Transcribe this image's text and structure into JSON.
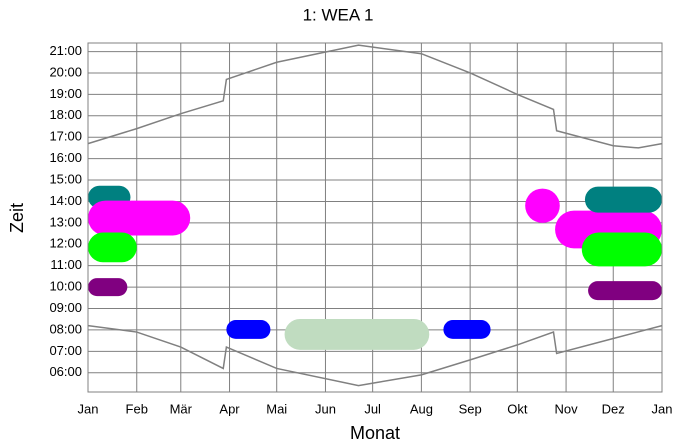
{
  "chart_data": {
    "type": "calendar",
    "title": "1: WEA 1",
    "x_label": "Monat",
    "y_label": "Zeit",
    "xlim": [
      0,
      365
    ],
    "ylim": [
      5.1,
      21.4
    ],
    "xticks": [
      {
        "value": 0,
        "label": "Jan"
      },
      {
        "value": 31,
        "label": "Feb"
      },
      {
        "value": 59,
        "label": "Mär"
      },
      {
        "value": 90,
        "label": "Apr"
      },
      {
        "value": 120,
        "label": "Mai"
      },
      {
        "value": 151,
        "label": "Jun"
      },
      {
        "value": 181,
        "label": "Jul"
      },
      {
        "value": 212,
        "label": "Aug"
      },
      {
        "value": 243,
        "label": "Sep"
      },
      {
        "value": 273,
        "label": "Okt"
      },
      {
        "value": 304,
        "label": "Nov"
      },
      {
        "value": 334,
        "label": "Dez"
      },
      {
        "value": 365,
        "label": "Jan"
      }
    ],
    "yticks": [
      {
        "value": 6,
        "label": "06:00"
      },
      {
        "value": 7,
        "label": "07:00"
      },
      {
        "value": 8,
        "label": "08:00"
      },
      {
        "value": 9,
        "label": "09:00"
      },
      {
        "value": 10,
        "label": "10:00"
      },
      {
        "value": 11,
        "label": "11:00"
      },
      {
        "value": 12,
        "label": "12:00"
      },
      {
        "value": 13,
        "label": "13:00"
      },
      {
        "value": 14,
        "label": "14:00"
      },
      {
        "value": 15,
        "label": "15:00"
      },
      {
        "value": 16,
        "label": "16:00"
      },
      {
        "value": 17,
        "label": "17:00"
      },
      {
        "value": 18,
        "label": "18:00"
      },
      {
        "value": 19,
        "label": "19:00"
      },
      {
        "value": 20,
        "label": "20:00"
      },
      {
        "value": 21,
        "label": "21:00"
      }
    ],
    "grid": true,
    "lines": [
      {
        "color": "#808080",
        "x": [
          0,
          31,
          59,
          86,
          88,
          120,
          172,
          212,
          243,
          273,
          296,
          298,
          334,
          350,
          365
        ],
        "values": [
          16.7,
          17.4,
          18.1,
          18.7,
          19.7,
          20.5,
          21.3,
          20.9,
          20.0,
          19.0,
          18.3,
          17.3,
          16.6,
          16.5,
          16.7
        ]
      },
      {
        "color": "#808080",
        "x": [
          0,
          31,
          59,
          86,
          88,
          120,
          172,
          212,
          243,
          273,
          296,
          298,
          334,
          365
        ],
        "values": [
          8.2,
          7.9,
          7.2,
          6.2,
          7.2,
          6.2,
          5.4,
          5.9,
          6.6,
          7.3,
          7.9,
          6.9,
          7.6,
          8.2
        ]
      }
    ],
    "periods": [
      {
        "color": "#008080",
        "x": [
          0,
          27
        ],
        "y": [
          13.67,
          14.73
        ]
      },
      {
        "color": "#ff00ff",
        "x": [
          0,
          65
        ],
        "y": [
          12.41,
          14.04
        ]
      },
      {
        "color": "#00ff00",
        "x": [
          0,
          31
        ],
        "y": [
          11.16,
          12.55
        ]
      },
      {
        "color": "#800080",
        "x": [
          0,
          25
        ],
        "y": [
          9.58,
          10.42
        ]
      },
      {
        "color": "#0000ff",
        "x": [
          88,
          116
        ],
        "y": [
          7.58,
          8.46
        ]
      },
      {
        "color": "#c0dcc0",
        "x": [
          125,
          217
        ],
        "y": [
          7.07,
          8.51
        ]
      },
      {
        "color": "#0000ff",
        "x": [
          226,
          256
        ],
        "y": [
          7.58,
          8.46
        ]
      },
      {
        "color": "#ff00ff",
        "x": [
          278,
          300
        ],
        "y": [
          13.0,
          14.6
        ]
      },
      {
        "color": "#ff00ff",
        "x": [
          297,
          365
        ],
        "y": [
          11.81,
          13.57
        ]
      },
      {
        "color": "#008080",
        "x": [
          316,
          365
        ],
        "y": [
          13.48,
          14.69
        ]
      },
      {
        "color": "#00ff00",
        "x": [
          314,
          365
        ],
        "y": [
          10.97,
          12.55
        ]
      },
      {
        "color": "#800080",
        "x": [
          318,
          365
        ],
        "y": [
          9.39,
          10.28
        ]
      }
    ]
  }
}
